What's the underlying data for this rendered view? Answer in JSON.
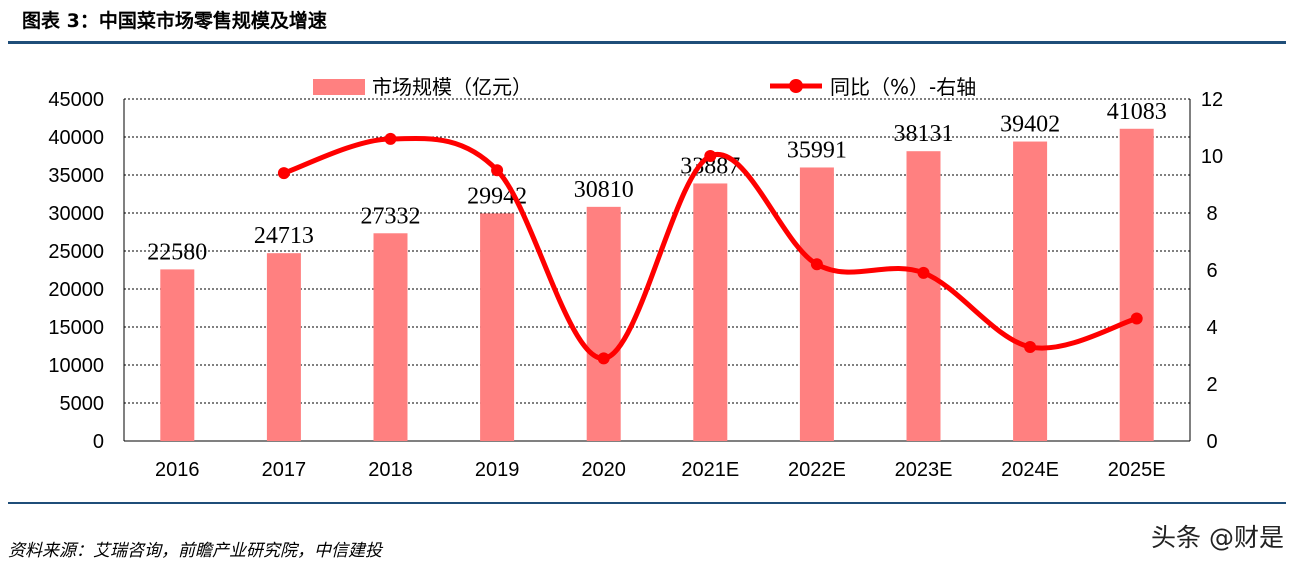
{
  "title": "图表 3：中国菜市场零售规模及增速",
  "source": "资料来源：艾瑞咨询，前瞻产业研究院，中信建投",
  "watermark": "头条 @财是",
  "chart_data": {
    "type": "bar+line",
    "categories": [
      "2016",
      "2017",
      "2018",
      "2019",
      "2020",
      "2021E",
      "2022E",
      "2023E",
      "2024E",
      "2025E"
    ],
    "series": [
      {
        "name": "市场规模（亿元）",
        "type": "bar",
        "axis": "left",
        "color": "#ff8080",
        "values": [
          22580,
          24713,
          27332,
          29942,
          30810,
          33887,
          35991,
          38131,
          39402,
          41083
        ],
        "labels": [
          "22580",
          "24713",
          "27332",
          "29942",
          "30810",
          "33887",
          "35991",
          "38131",
          "39402",
          "41083"
        ]
      },
      {
        "name": "同比（%）-右轴",
        "type": "line",
        "axis": "right",
        "color": "#ff0000",
        "values": [
          null,
          9.4,
          10.6,
          9.5,
          2.9,
          10.0,
          6.2,
          5.9,
          3.3,
          4.3
        ]
      }
    ],
    "left_axis": {
      "min": 0,
      "max": 45000,
      "step": 5000,
      "ticks": [
        "0",
        "5000",
        "10000",
        "15000",
        "20000",
        "25000",
        "30000",
        "35000",
        "40000",
        "45000"
      ]
    },
    "right_axis": {
      "min": 0,
      "max": 12,
      "step": 2,
      "ticks": [
        "0",
        "2",
        "4",
        "6",
        "8",
        "10",
        "12"
      ]
    },
    "grid": "horizontal dashed",
    "legend": "top"
  }
}
